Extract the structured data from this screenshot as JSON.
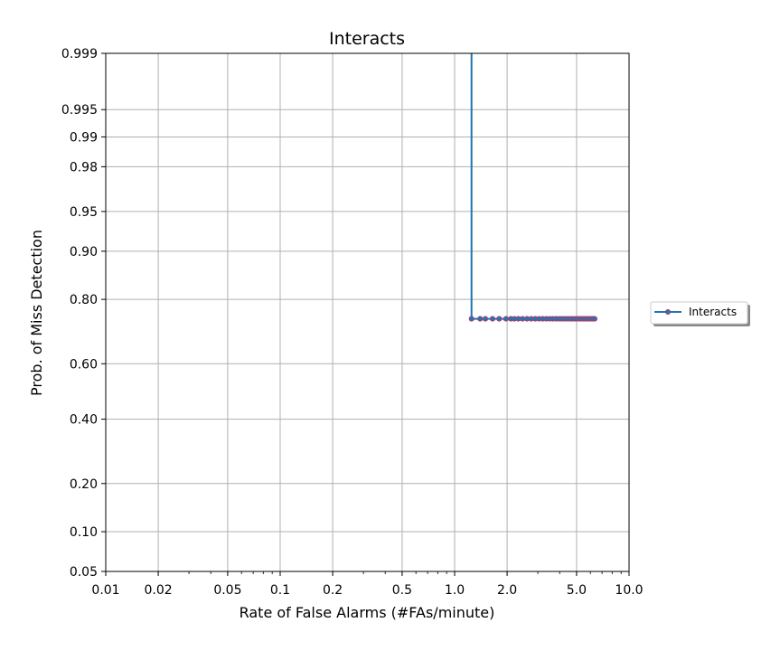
{
  "chart_data": {
    "type": "line",
    "title": "Interacts",
    "xlabel": "Rate of False Alarms (#FAs/minute)",
    "ylabel": "Prob. of Miss Detection",
    "x_scale": "log",
    "y_scale": "probit",
    "xlim": [
      0.01,
      10.0
    ],
    "ylim": [
      0.05,
      0.999
    ],
    "grid": true,
    "legend_position": "right",
    "x_ticks": [
      {
        "value": 0.01,
        "label": "0.01"
      },
      {
        "value": 0.02,
        "label": "0.02"
      },
      {
        "value": 0.05,
        "label": "0.05"
      },
      {
        "value": 0.1,
        "label": "0.1"
      },
      {
        "value": 0.2,
        "label": "0.2"
      },
      {
        "value": 0.5,
        "label": "0.5"
      },
      {
        "value": 1.0,
        "label": "1.0"
      },
      {
        "value": 2.0,
        "label": "2.0"
      },
      {
        "value": 5.0,
        "label": "5.0"
      },
      {
        "value": 10.0,
        "label": "10.0"
      }
    ],
    "y_ticks": [
      {
        "value": 0.05,
        "label": "0.05"
      },
      {
        "value": 0.1,
        "label": "0.10"
      },
      {
        "value": 0.2,
        "label": "0.20"
      },
      {
        "value": 0.4,
        "label": "0.40"
      },
      {
        "value": 0.6,
        "label": "0.60"
      },
      {
        "value": 0.8,
        "label": "0.80"
      },
      {
        "value": 0.9,
        "label": "0.90"
      },
      {
        "value": 0.95,
        "label": "0.95"
      },
      {
        "value": 0.98,
        "label": "0.98"
      },
      {
        "value": 0.99,
        "label": "0.99"
      },
      {
        "value": 0.995,
        "label": "0.995"
      },
      {
        "value": 0.999,
        "label": "0.999"
      }
    ],
    "series": [
      {
        "name": "Interacts",
        "color": "#1f77b4",
        "marker_edge_color": "#b03a6a",
        "vertical_segment": {
          "x": 1.25,
          "y_from": 0.999,
          "y_to": 0.7467
        },
        "x": [
          1.25,
          1.4,
          1.5,
          1.65,
          1.8,
          1.97,
          2.1,
          2.2,
          2.32,
          2.45,
          2.6,
          2.75,
          2.9,
          3.05,
          3.2,
          3.35,
          3.5,
          3.65,
          3.8,
          3.95,
          4.1,
          4.25,
          4.4,
          4.55,
          4.7,
          4.85,
          5.0,
          5.15,
          5.3,
          5.45,
          5.6,
          5.75,
          5.9,
          6.05,
          6.2,
          6.35
        ],
        "y": [
          0.7467,
          0.7467,
          0.7467,
          0.7467,
          0.7467,
          0.7467,
          0.7467,
          0.7467,
          0.7467,
          0.7467,
          0.7467,
          0.7467,
          0.7467,
          0.7467,
          0.7467,
          0.7467,
          0.7467,
          0.7467,
          0.7467,
          0.7467,
          0.7467,
          0.7467,
          0.7467,
          0.7467,
          0.7467,
          0.7467,
          0.7467,
          0.7467,
          0.7467,
          0.7467,
          0.7467,
          0.7467,
          0.7467,
          0.7467,
          0.7467,
          0.7467
        ]
      }
    ]
  }
}
